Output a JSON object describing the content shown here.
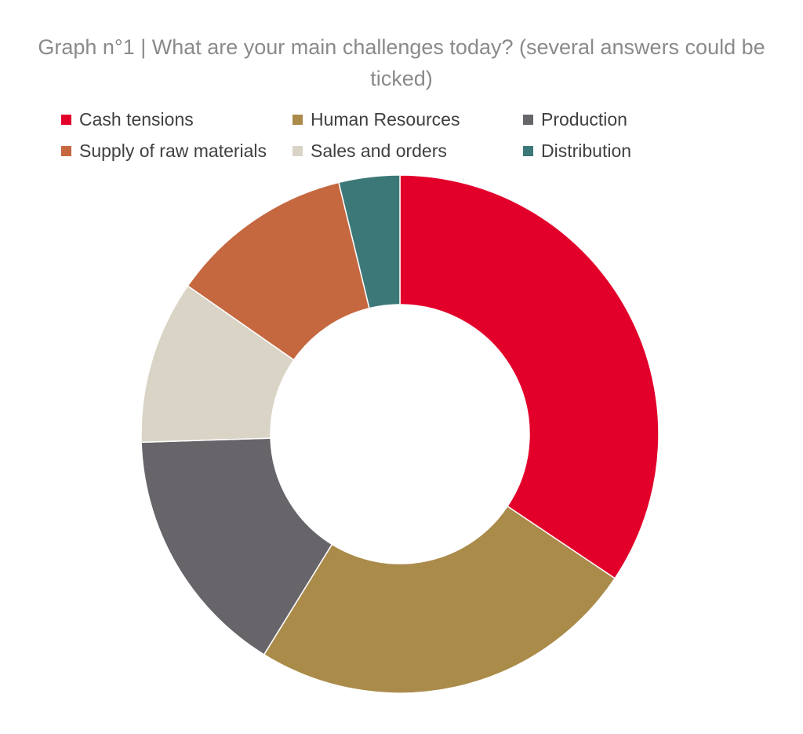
{
  "chart_data": {
    "type": "pie",
    "title_lines": [
      "Graph n°1 | What are your main challenges today? (several answers could be",
      "ticked)"
    ],
    "donut": true,
    "legend_position": "top",
    "categories": [
      "Cash tensions",
      "Human Resources",
      "Production",
      "Sales and orders",
      "Supply of raw materials",
      "Distribution"
    ],
    "values": [
      34.4,
      24.4,
      15.7,
      10.2,
      11.5,
      3.8
    ],
    "colors": [
      "#e2002b",
      "#aa8b4a",
      "#67646a",
      "#d9d4c5",
      "#c56840",
      "#3d7878"
    ],
    "legend": [
      {
        "label": "Cash tensions",
        "color": "#e2002b"
      },
      {
        "label": "Human Resources",
        "color": "#aa8b4a"
      },
      {
        "label": "Production",
        "color": "#67646a"
      },
      {
        "label": "Supply of raw materials",
        "color": "#c56840"
      },
      {
        "label": "Sales and orders",
        "color": "#d9d4c5"
      },
      {
        "label": "Distribution",
        "color": "#3d7878"
      }
    ]
  }
}
